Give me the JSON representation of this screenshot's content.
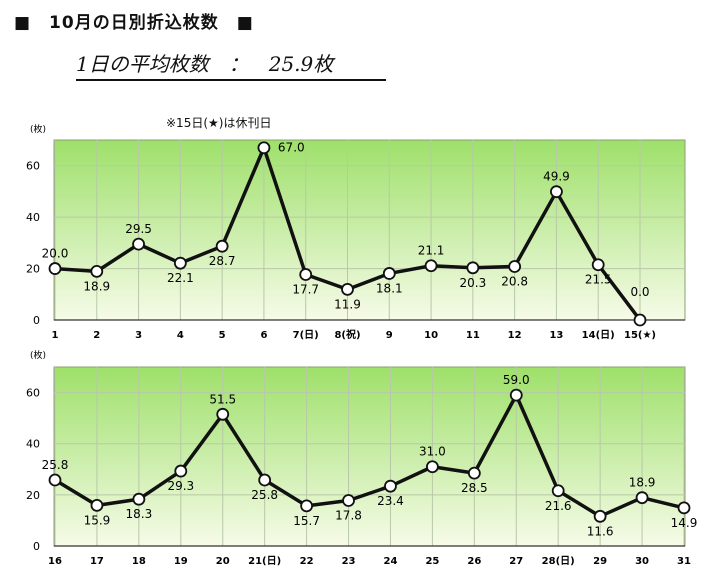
{
  "title": "■　10月の日別折込枚数　■",
  "average_text": "1日の平均枚数　：　25.9枚",
  "chart_data": [
    {
      "type": "line",
      "title": "",
      "note": "※15日(★)は休刊日",
      "ylabel": "(枚)",
      "ylim": [
        0,
        70
      ],
      "yticks": [
        0,
        20,
        40,
        60
      ],
      "grid": true,
      "categories": [
        "1",
        "2",
        "3",
        "4",
        "5",
        "6",
        "7(日)",
        "8(祝)",
        "9",
        "10",
        "11",
        "12",
        "13",
        "14(日)",
        "15(★)"
      ],
      "values": [
        20.0,
        18.9,
        29.5,
        22.1,
        28.7,
        67.0,
        17.7,
        11.9,
        18.1,
        21.1,
        20.3,
        20.8,
        49.9,
        21.5,
        0.0
      ],
      "labels": [
        "20.0",
        "18.9",
        "29.5",
        "22.1",
        "28.7",
        "67.0",
        "17.7",
        "11.9",
        "18.1",
        "21.1",
        "20.3",
        "20.8",
        "49.9",
        "21.5",
        "0.0"
      ]
    },
    {
      "type": "line",
      "title": "",
      "ylabel": "(枚)",
      "ylim": [
        0,
        70
      ],
      "yticks": [
        0,
        20,
        40,
        60
      ],
      "grid": true,
      "categories": [
        "16",
        "17",
        "18",
        "19",
        "20",
        "21(日)",
        "22",
        "23",
        "24",
        "25",
        "26",
        "27",
        "28(日)",
        "29",
        "30",
        "31"
      ],
      "values": [
        25.8,
        15.9,
        18.3,
        29.3,
        51.5,
        25.8,
        15.7,
        17.8,
        23.4,
        31.0,
        28.5,
        59.0,
        21.6,
        11.6,
        18.9,
        14.9
      ],
      "labels": [
        "25.8",
        "15.9",
        "18.3",
        "29.3",
        "51.5",
        "25.8",
        "15.7",
        "17.8",
        "23.4",
        "31.0",
        "28.5",
        "59.0",
        "21.6",
        "11.6",
        "18.9",
        "14.9"
      ]
    }
  ],
  "colors": {
    "bg_top": "#9ee06a",
    "bg_bottom": "#f6fbe8",
    "line": "#111111",
    "grid": "#b8c8a8"
  }
}
